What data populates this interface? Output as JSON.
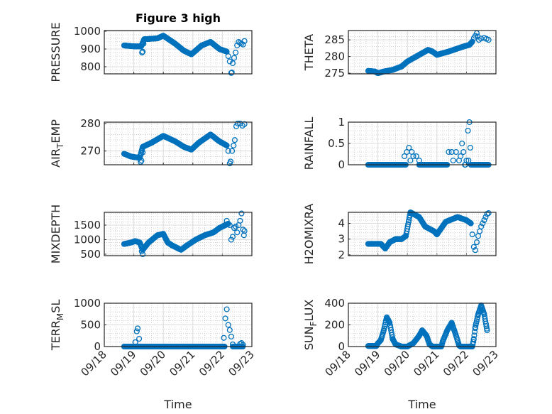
{
  "figure_title": "Figure 3 high",
  "marker_color": "#0072BD",
  "chart_data": [
    {
      "type": "scatter",
      "ylabel": "PRESSURE",
      "title": "Figure 3 high",
      "xlabel": "",
      "ylim": [
        760,
        1004
      ],
      "yticks": [
        800,
        900,
        1000
      ],
      "series_keypoints": [
        [
          0.67,
          920
        ],
        [
          1.0,
          915
        ],
        [
          1.25,
          915
        ],
        [
          1.35,
          955
        ],
        [
          1.8,
          960
        ],
        [
          2.0,
          975
        ],
        [
          2.4,
          930
        ],
        [
          2.7,
          890
        ],
        [
          2.95,
          870
        ],
        [
          3.3,
          920
        ],
        [
          3.6,
          940
        ],
        [
          3.9,
          900
        ],
        [
          4.15,
          885
        ]
      ],
      "extra_points": [
        [
          1.28,
          880
        ],
        [
          1.3,
          885
        ],
        [
          1.33,
          930
        ],
        [
          4.2,
          860
        ],
        [
          4.25,
          830
        ],
        [
          4.3,
          765
        ],
        [
          4.32,
          768
        ],
        [
          4.35,
          820
        ],
        [
          4.4,
          850
        ],
        [
          4.45,
          880
        ],
        [
          4.5,
          920
        ],
        [
          4.55,
          940
        ],
        [
          4.6,
          935
        ],
        [
          4.65,
          930
        ],
        [
          4.7,
          925
        ],
        [
          4.75,
          945
        ]
      ]
    },
    {
      "type": "scatter",
      "ylabel": "THETA",
      "xlabel": "",
      "ylim": [
        274.8,
        287.8
      ],
      "yticks": [
        275,
        280,
        285
      ],
      "series_keypoints": [
        [
          0.67,
          275.7
        ],
        [
          0.9,
          275.5
        ],
        [
          1.0,
          275.0
        ],
        [
          1.2,
          275.5
        ],
        [
          1.5,
          276
        ],
        [
          1.8,
          277
        ],
        [
          2.0,
          278.5
        ],
        [
          2.3,
          280
        ],
        [
          2.7,
          282
        ],
        [
          2.85,
          281.5
        ],
        [
          3.0,
          280.5
        ],
        [
          3.4,
          281.5
        ],
        [
          3.9,
          283
        ],
        [
          4.1,
          283.5
        ],
        [
          4.2,
          284.5
        ]
      ],
      "extra_points": [
        [
          4.25,
          285.5
        ],
        [
          4.3,
          286.2
        ],
        [
          4.35,
          287
        ],
        [
          4.38,
          286
        ],
        [
          4.42,
          285
        ],
        [
          4.5,
          285.4
        ],
        [
          4.6,
          285.6
        ],
        [
          4.68,
          285.3
        ],
        [
          4.75,
          285
        ]
      ]
    },
    {
      "type": "scatter",
      "ylabel": "AIR_TEMP",
      "xlabel": "",
      "ylim": [
        265,
        280.5
      ],
      "yticks": [
        270,
        280
      ],
      "series_keypoints": [
        [
          0.67,
          269
        ],
        [
          0.9,
          268
        ],
        [
          1.2,
          267.5
        ],
        [
          1.3,
          271.5
        ],
        [
          1.6,
          273
        ],
        [
          2.0,
          275.5
        ],
        [
          2.4,
          273.5
        ],
        [
          2.7,
          271.5
        ],
        [
          2.95,
          270.5
        ],
        [
          3.2,
          273
        ],
        [
          3.6,
          276
        ],
        [
          3.9,
          273.5
        ],
        [
          4.15,
          272
        ]
      ],
      "extra_points": [
        [
          1.23,
          266
        ],
        [
          1.26,
          266.5
        ],
        [
          1.3,
          269.5
        ],
        [
          4.2,
          270
        ],
        [
          4.25,
          265.5
        ],
        [
          4.28,
          266.2
        ],
        [
          4.33,
          270
        ],
        [
          4.38,
          272
        ],
        [
          4.42,
          274
        ],
        [
          4.47,
          279
        ],
        [
          4.52,
          280
        ],
        [
          4.6,
          280
        ],
        [
          4.68,
          279.2
        ],
        [
          4.75,
          279.8
        ]
      ]
    },
    {
      "type": "scatter",
      "ylabel": "RAINFALL",
      "xlabel": "",
      "ylim": [
        0,
        1
      ],
      "yticks": [
        0,
        0.5,
        1
      ],
      "zero_ranges": [
        [
          0.67,
          1.95
        ],
        [
          2.4,
          3.35
        ],
        [
          3.95,
          3.98
        ],
        [
          4.15,
          4.75
        ]
      ],
      "extra_points": [
        [
          1.9,
          0.2
        ],
        [
          1.98,
          0.3
        ],
        [
          2.05,
          0.4
        ],
        [
          2.1,
          0.1
        ],
        [
          2.15,
          0.3
        ],
        [
          2.2,
          0.2
        ],
        [
          2.3,
          0.2
        ],
        [
          2.4,
          0.1
        ],
        [
          3.4,
          0.3
        ],
        [
          3.5,
          0.3
        ],
        [
          3.55,
          0.1
        ],
        [
          3.65,
          0.3
        ],
        [
          3.75,
          0.1
        ],
        [
          3.8,
          0.2
        ],
        [
          3.85,
          0.5
        ],
        [
          3.9,
          0.3
        ],
        [
          4.0,
          0.1
        ],
        [
          4.05,
          0.8
        ],
        [
          4.1,
          1.0
        ],
        [
          4.13,
          0.4
        ],
        [
          4.07,
          0.1
        ]
      ]
    },
    {
      "type": "scatter",
      "ylabel": "MIXDEPTH",
      "xlabel": "",
      "ylim": [
        450,
        1940
      ],
      "yticks": [
        500,
        1000,
        1500
      ],
      "series_keypoints": [
        [
          0.67,
          850
        ],
        [
          0.9,
          900
        ],
        [
          1.05,
          950
        ],
        [
          1.2,
          900
        ],
        [
          1.3,
          650
        ],
        [
          1.5,
          900
        ],
        [
          1.8,
          1150
        ],
        [
          2.0,
          1200
        ],
        [
          2.15,
          900
        ],
        [
          2.3,
          800
        ],
        [
          2.6,
          650
        ],
        [
          2.8,
          800
        ],
        [
          3.1,
          1000
        ],
        [
          3.4,
          1150
        ],
        [
          3.7,
          1250
        ],
        [
          3.9,
          1400
        ],
        [
          4.1,
          1500
        ],
        [
          4.2,
          1550
        ]
      ],
      "extra_points": [
        [
          1.27,
          600
        ],
        [
          1.3,
          500
        ],
        [
          4.15,
          1650
        ],
        [
          4.25,
          1500
        ],
        [
          4.3,
          1000
        ],
        [
          4.35,
          1100
        ],
        [
          4.4,
          1400
        ],
        [
          4.45,
          1450
        ],
        [
          4.5,
          1250
        ],
        [
          4.55,
          1500
        ],
        [
          4.6,
          1650
        ],
        [
          4.65,
          1900
        ],
        [
          4.7,
          1350
        ],
        [
          4.73,
          1150
        ],
        [
          4.75,
          1300
        ]
      ]
    },
    {
      "type": "scatter",
      "ylabel": "H2OMIXRA",
      "xlabel": "",
      "ylim": [
        1.95,
        4.7
      ],
      "yticks": [
        2,
        3,
        4
      ],
      "series_keypoints": [
        [
          0.67,
          2.7
        ],
        [
          1.1,
          2.7
        ],
        [
          1.25,
          2.4
        ],
        [
          1.4,
          2.8
        ],
        [
          1.6,
          3.0
        ],
        [
          1.8,
          3.0
        ],
        [
          1.95,
          3.2
        ],
        [
          2.05,
          4.2
        ],
        [
          2.1,
          4.7
        ],
        [
          2.4,
          4.4
        ],
        [
          2.6,
          3.8
        ],
        [
          2.9,
          3.5
        ],
        [
          3.0,
          3.3
        ],
        [
          3.3,
          4.1
        ],
        [
          3.7,
          4.4
        ],
        [
          4.0,
          4.2
        ],
        [
          4.15,
          4.0
        ]
      ],
      "extra_points": [
        [
          4.2,
          3.3
        ],
        [
          4.25,
          2.5
        ],
        [
          4.3,
          2.3
        ],
        [
          4.35,
          2.8
        ],
        [
          4.4,
          3.2
        ],
        [
          4.45,
          3.5
        ],
        [
          4.5,
          3.8
        ],
        [
          4.55,
          4.0
        ],
        [
          4.6,
          4.2
        ],
        [
          4.65,
          4.4
        ],
        [
          4.7,
          4.6
        ],
        [
          4.75,
          4.65
        ]
      ]
    },
    {
      "type": "scatter",
      "ylabel": "TERR_MSL",
      "xlabel": "Time",
      "ylim": [
        0,
        1000
      ],
      "yticks": [
        0,
        500,
        1000
      ],
      "zero_ranges": [
        [
          0.67,
          4.08
        ],
        [
          4.35,
          4.7
        ]
      ],
      "extra_points": [
        [
          1.05,
          100
        ],
        [
          1.1,
          350
        ],
        [
          1.13,
          420
        ],
        [
          1.18,
          180
        ],
        [
          4.05,
          200
        ],
        [
          4.1,
          650
        ],
        [
          4.15,
          860
        ],
        [
          4.2,
          500
        ],
        [
          4.25,
          380
        ],
        [
          4.3,
          230
        ],
        [
          4.35,
          50
        ],
        [
          4.6,
          60
        ],
        [
          4.65,
          80
        ],
        [
          4.7,
          40
        ]
      ]
    },
    {
      "type": "scatter",
      "ylabel": "SUN_FLUX",
      "xlabel": "Time",
      "ylim": [
        0,
        400
      ],
      "yticks": [
        0,
        200,
        400
      ],
      "series_keypoints": [
        [
          0.67,
          5
        ],
        [
          0.95,
          5
        ],
        [
          1.0,
          30
        ],
        [
          1.1,
          60
        ],
        [
          1.2,
          150
        ],
        [
          1.3,
          270
        ],
        [
          1.4,
          220
        ],
        [
          1.5,
          70
        ],
        [
          1.6,
          20
        ],
        [
          1.8,
          0
        ],
        [
          2.0,
          0
        ],
        [
          2.2,
          30
        ],
        [
          2.4,
          100
        ],
        [
          2.5,
          150
        ],
        [
          2.65,
          100
        ],
        [
          2.75,
          20
        ],
        [
          2.85,
          0
        ],
        [
          3.15,
          0
        ],
        [
          3.2,
          50
        ],
        [
          3.35,
          150
        ],
        [
          3.5,
          220
        ],
        [
          3.65,
          100
        ],
        [
          3.75,
          10
        ],
        [
          3.8,
          0
        ],
        [
          4.2,
          0
        ],
        [
          4.25,
          70
        ],
        [
          4.3,
          180
        ],
        [
          4.4,
          300
        ],
        [
          4.5,
          380
        ],
        [
          4.6,
          300
        ],
        [
          4.7,
          150
        ]
      ],
      "extra_points": []
    }
  ],
  "x_axis": {
    "xlim": [
      0,
      5
    ],
    "tick_labels": [
      "09/18",
      "09/19",
      "09/20",
      "09/21",
      "09/22",
      "09/23"
    ],
    "xlabel": "Time"
  }
}
